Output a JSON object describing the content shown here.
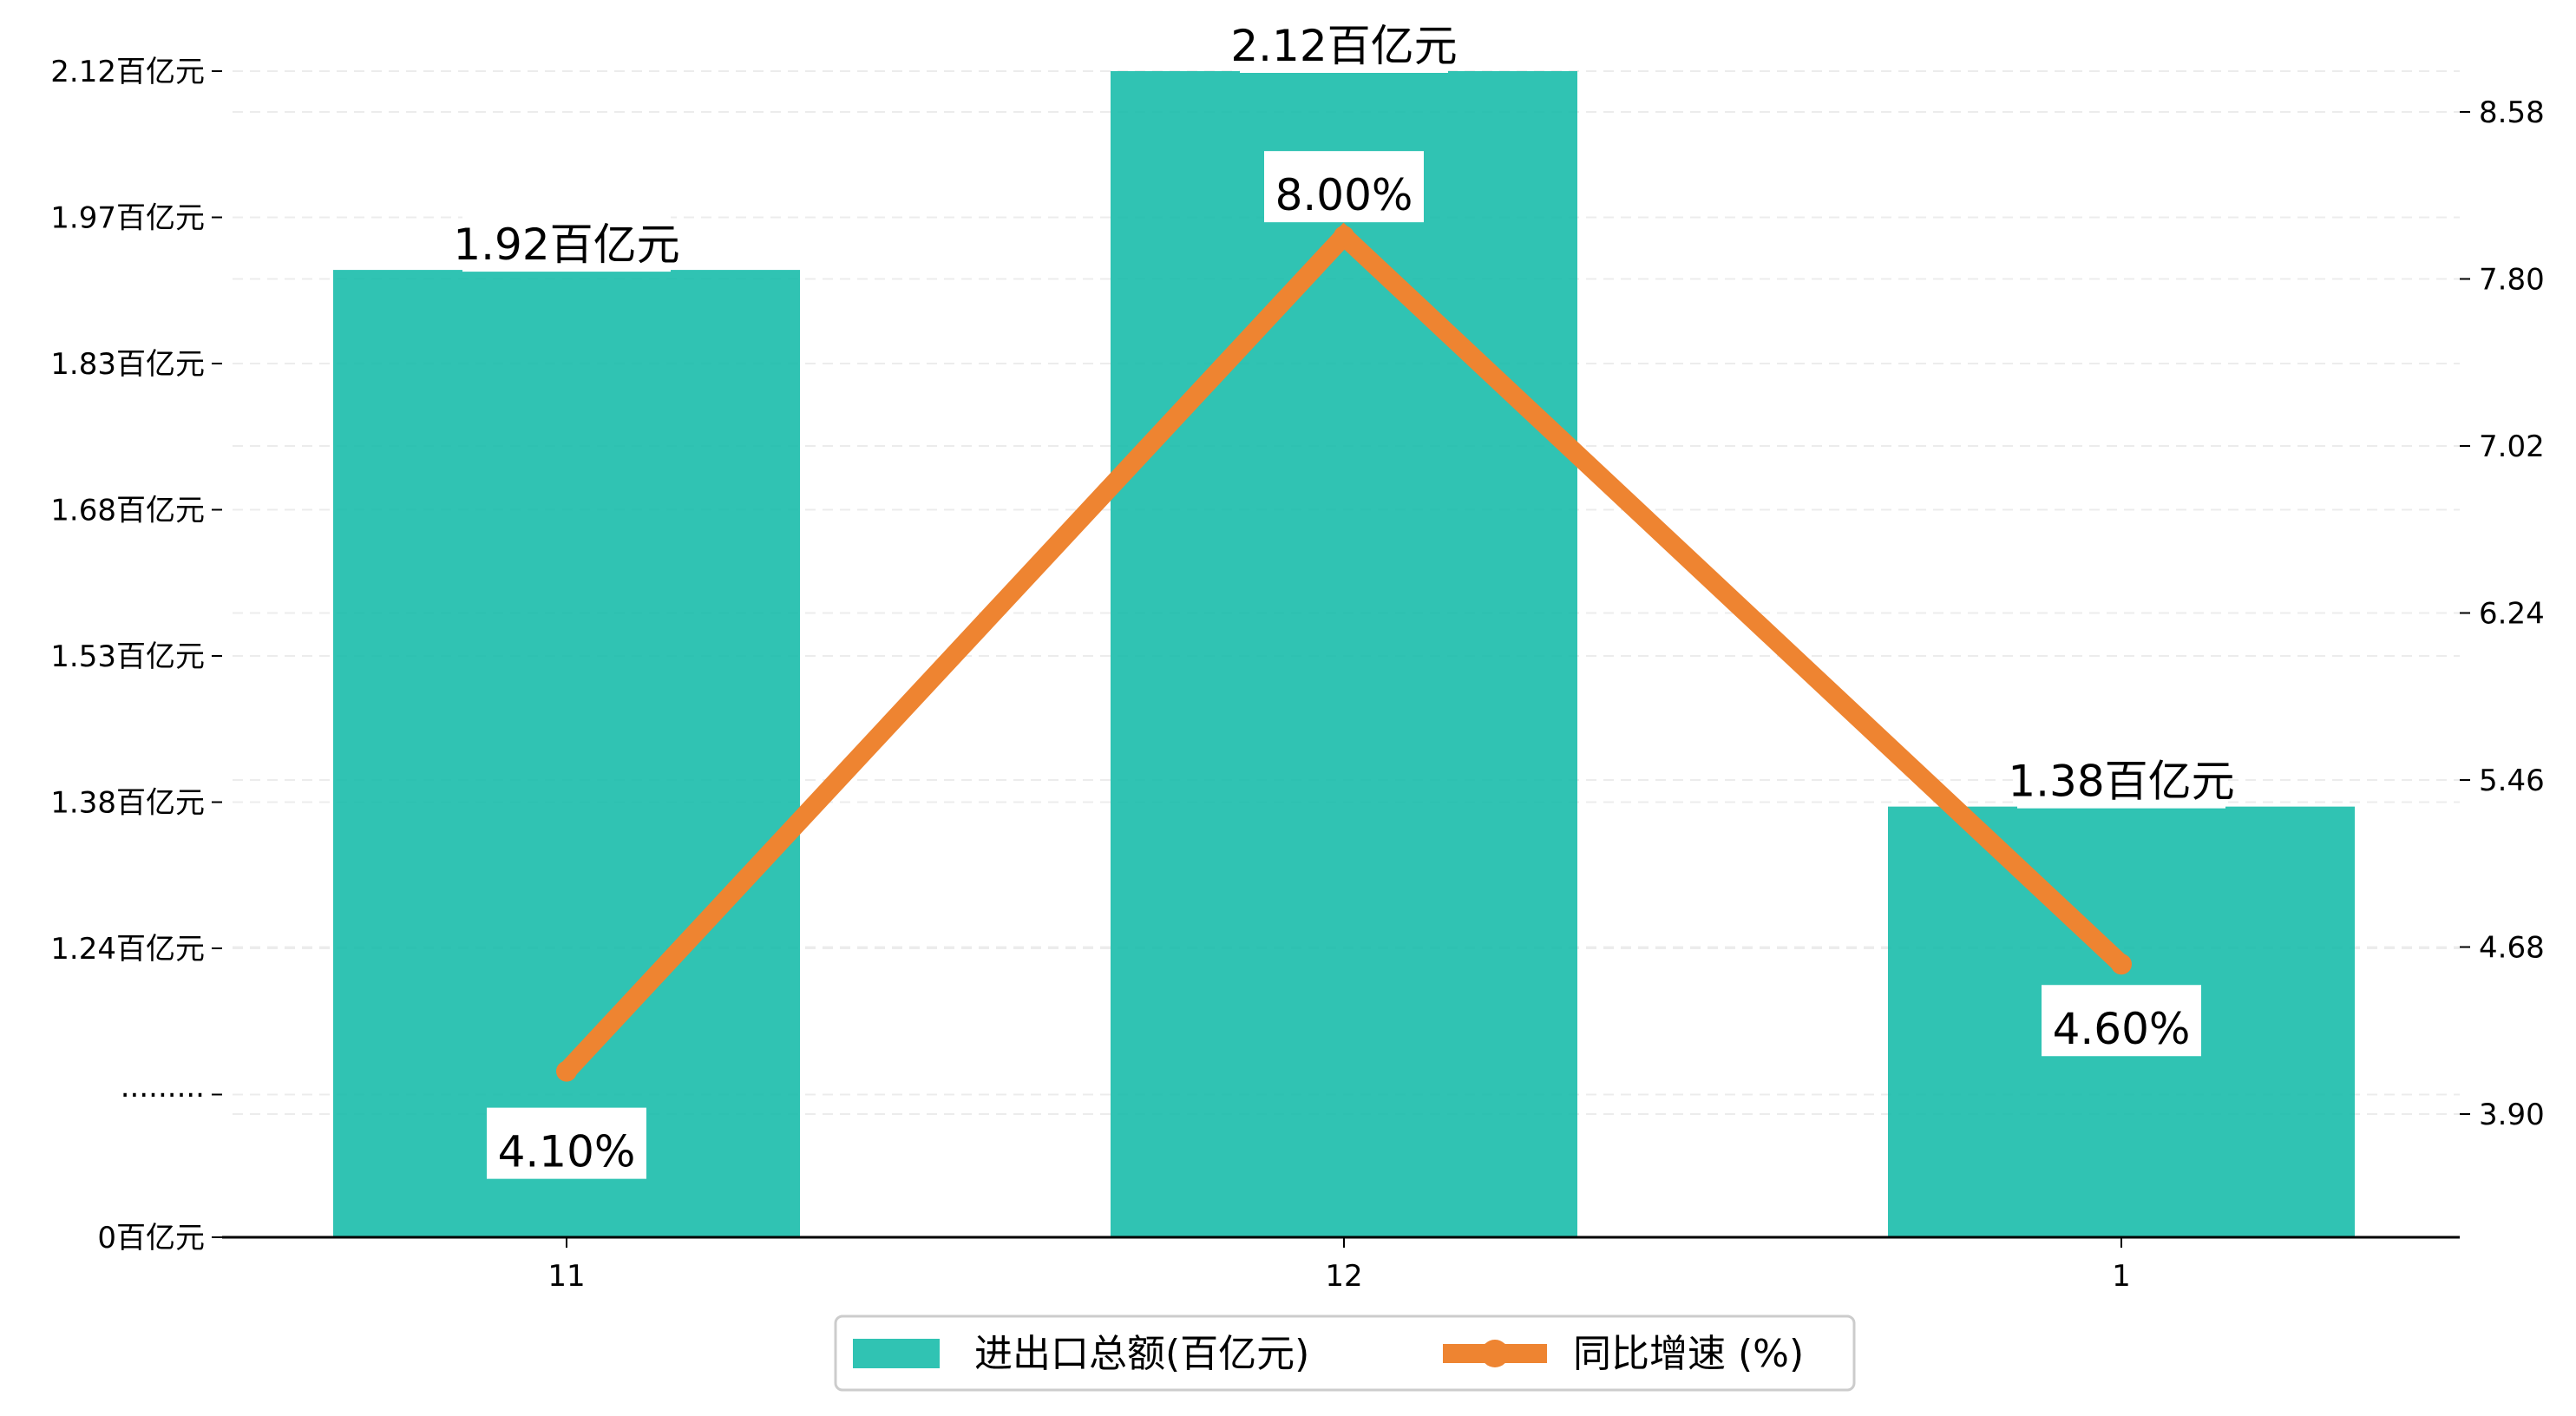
{
  "chart_data": {
    "type": "bar",
    "categories": [
      "11",
      "12",
      "1"
    ],
    "series": [
      {
        "name": "进出口总额(百亿元)",
        "kind": "bar",
        "axis": "left",
        "color": "#1abcab",
        "values": [
          1.92,
          2.12,
          1.38
        ],
        "labels": [
          "1.92百亿元",
          "2.12百亿元",
          "1.38百亿元"
        ]
      },
      {
        "name": "同比增速 (%)",
        "kind": "line",
        "axis": "right",
        "color": "#ee8431",
        "values": [
          4.1,
          8.0,
          4.6
        ],
        "labels": [
          "4.10%",
          "8.00%",
          "4.60%"
        ]
      }
    ],
    "left_axis": {
      "ticks": [
        {
          "label": "0百亿元"
        },
        {
          "label": "·········"
        },
        {
          "label": "1.24百亿元",
          "value": 1.24
        },
        {
          "label": "1.38百亿元",
          "value": 1.38
        },
        {
          "label": "1.53百亿元",
          "value": 1.53
        },
        {
          "label": "1.68百亿元",
          "value": 1.68
        },
        {
          "label": "1.83百亿元",
          "value": 1.83
        },
        {
          "label": "1.97百亿元",
          "value": 1.97
        },
        {
          "label": "2.12百亿元",
          "value": 2.12
        }
      ],
      "broken": true,
      "ylim": [
        0,
        2.12
      ]
    },
    "right_axis": {
      "ticks": [
        "3.90",
        "4.68",
        "5.46",
        "6.24",
        "7.02",
        "7.80",
        "8.58"
      ],
      "ylim": [
        3.32,
        8.78
      ]
    },
    "grid": true,
    "legend_position": "bottom"
  }
}
